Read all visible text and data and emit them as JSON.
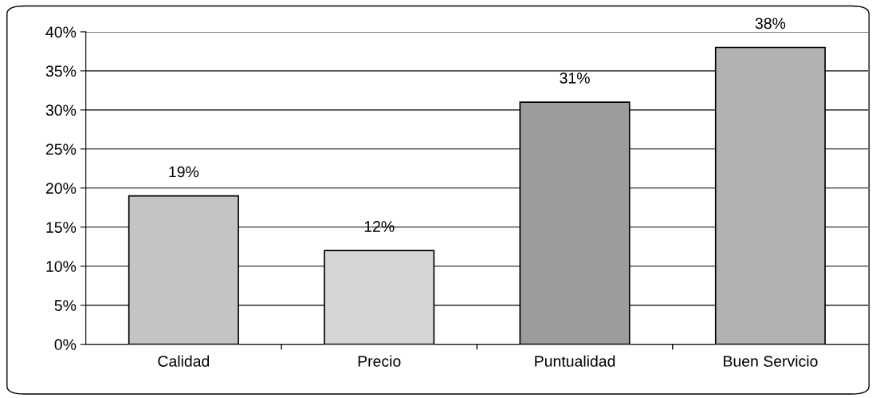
{
  "chart_data": {
    "type": "bar",
    "categories": [
      "Calidad",
      "Precio",
      "Puntualidad",
      "Buen Servicio"
    ],
    "values": [
      19,
      12,
      31,
      38
    ],
    "colors": [
      "#c4c4c4",
      "#d6d6d6",
      "#9c9c9c",
      "#b2b2b2"
    ],
    "value_labels": [
      "19%",
      "12%",
      "31%",
      "38%"
    ],
    "ylim": [
      0,
      40
    ],
    "yticks": [
      {
        "value": 0,
        "label": "0%"
      },
      {
        "value": 5,
        "label": "5%"
      },
      {
        "value": 10,
        "label": "10%"
      },
      {
        "value": 15,
        "label": "15%"
      },
      {
        "value": 20,
        "label": "20%"
      },
      {
        "value": 25,
        "label": "25%"
      },
      {
        "value": 30,
        "label": "30%"
      },
      {
        "value": 35,
        "label": "35%"
      },
      {
        "value": 40,
        "label": "40%"
      }
    ],
    "grid": "y"
  }
}
